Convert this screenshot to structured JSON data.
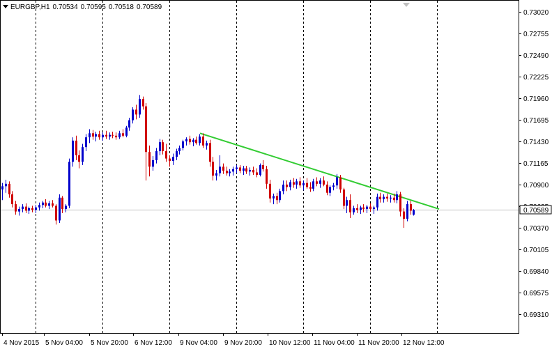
{
  "header": {
    "symbol": "EURGBP,H1",
    "open": "0.70534",
    "high": "0.70595",
    "low": "0.70518",
    "close": "0.70589"
  },
  "colors": {
    "bull": "#0000cc",
    "bear": "#d00000",
    "trendline": "#33cc33",
    "grid": "#000000",
    "price_line": "#c0c0c0",
    "current_price_box": "#ffffff"
  },
  "chart_data": {
    "type": "candlestick",
    "symbol": "EURGBP",
    "timeframe": "H1",
    "y_ticks": [
      "0.73020",
      "0.72755",
      "0.72490",
      "0.72225",
      "0.71960",
      "0.71695",
      "0.71430",
      "0.71165",
      "0.70900",
      "0.70635",
      "0.70370",
      "0.70105",
      "0.69840",
      "0.69575",
      "0.69310"
    ],
    "x_ticks": [
      "4 Nov 2015",
      "5 Nov 04:00",
      "5 Nov 20:00",
      "6 Nov 12:00",
      "9 Nov 04:00",
      "9 Nov 20:00",
      "10 Nov 12:00",
      "11 Nov 04:00",
      "11 Nov 20:00",
      "12 Nov 12:00"
    ],
    "current_price": "0.70589",
    "trendline": {
      "start": [
        "9 Nov 04:00",
        0.7153
      ],
      "end": [
        "12 Nov 12:00",
        0.706
      ]
    },
    "candles": [
      [
        0.7084,
        0.7092,
        0.7071,
        0.7088
      ],
      [
        0.7088,
        0.7096,
        0.708,
        0.7091
      ],
      [
        0.7091,
        0.7094,
        0.7074,
        0.7078
      ],
      [
        0.7078,
        0.7082,
        0.7062,
        0.7066
      ],
      [
        0.7066,
        0.707,
        0.7053,
        0.7057
      ],
      [
        0.7057,
        0.7063,
        0.7052,
        0.706
      ],
      [
        0.706,
        0.7066,
        0.7056,
        0.7063
      ],
      [
        0.7063,
        0.7067,
        0.7055,
        0.7058
      ],
      [
        0.7058,
        0.7063,
        0.7054,
        0.7061
      ],
      [
        0.7061,
        0.7064,
        0.7056,
        0.7059
      ],
      [
        0.7059,
        0.7065,
        0.7055,
        0.7062
      ],
      [
        0.7062,
        0.7068,
        0.7058,
        0.7065
      ],
      [
        0.7065,
        0.707,
        0.7061,
        0.7068
      ],
      [
        0.7068,
        0.7072,
        0.7062,
        0.7064
      ],
      [
        0.7064,
        0.707,
        0.706,
        0.7067
      ],
      [
        0.7067,
        0.7071,
        0.7062,
        0.7064
      ],
      [
        0.7064,
        0.7066,
        0.7041,
        0.7046
      ],
      [
        0.7046,
        0.7078,
        0.7043,
        0.7074
      ],
      [
        0.7074,
        0.7076,
        0.7055,
        0.706
      ],
      [
        0.706,
        0.7066,
        0.7056,
        0.7064
      ],
      [
        0.7064,
        0.7122,
        0.7061,
        0.7118
      ],
      [
        0.7118,
        0.7148,
        0.7112,
        0.7144
      ],
      [
        0.7144,
        0.715,
        0.712,
        0.7126
      ],
      [
        0.7126,
        0.7132,
        0.711,
        0.7118
      ],
      [
        0.7118,
        0.714,
        0.7114,
        0.7136
      ],
      [
        0.7136,
        0.7152,
        0.7131,
        0.7148
      ],
      [
        0.7148,
        0.7158,
        0.7141,
        0.7153
      ],
      [
        0.7153,
        0.7157,
        0.7145,
        0.7149
      ],
      [
        0.7149,
        0.7155,
        0.7143,
        0.7152
      ],
      [
        0.7152,
        0.7156,
        0.7145,
        0.7148
      ],
      [
        0.7148,
        0.7154,
        0.7144,
        0.7151
      ],
      [
        0.7151,
        0.7156,
        0.7146,
        0.7149
      ],
      [
        0.7149,
        0.7154,
        0.7145,
        0.7151
      ],
      [
        0.7151,
        0.7155,
        0.7147,
        0.715
      ],
      [
        0.715,
        0.7154,
        0.7145,
        0.7148
      ],
      [
        0.7148,
        0.7156,
        0.7146,
        0.7153
      ],
      [
        0.7153,
        0.7158,
        0.7148,
        0.715
      ],
      [
        0.715,
        0.7162,
        0.7148,
        0.716
      ],
      [
        0.716,
        0.7172,
        0.7156,
        0.7169
      ],
      [
        0.7169,
        0.7185,
        0.7165,
        0.7182
      ],
      [
        0.7182,
        0.7188,
        0.717,
        0.7176
      ],
      [
        0.7176,
        0.72,
        0.7172,
        0.7195
      ],
      [
        0.7195,
        0.7198,
        0.7182,
        0.7186
      ],
      [
        0.7186,
        0.719,
        0.7095,
        0.713
      ],
      [
        0.713,
        0.7138,
        0.71,
        0.7112
      ],
      [
        0.7112,
        0.7125,
        0.7107,
        0.712
      ],
      [
        0.712,
        0.7135,
        0.7116,
        0.7131
      ],
      [
        0.7131,
        0.7146,
        0.7126,
        0.7142
      ],
      [
        0.7142,
        0.7145,
        0.7127,
        0.7131
      ],
      [
        0.7131,
        0.714,
        0.7118,
        0.7122
      ],
      [
        0.7122,
        0.7126,
        0.7112,
        0.7119
      ],
      [
        0.7119,
        0.7128,
        0.7114,
        0.7124
      ],
      [
        0.7124,
        0.7134,
        0.712,
        0.7131
      ],
      [
        0.7131,
        0.7138,
        0.7127,
        0.7135
      ],
      [
        0.7135,
        0.7145,
        0.7132,
        0.7143
      ],
      [
        0.7143,
        0.7148,
        0.7138,
        0.7146
      ],
      [
        0.7146,
        0.715,
        0.7139,
        0.7142
      ],
      [
        0.7142,
        0.7147,
        0.7137,
        0.7145
      ],
      [
        0.7145,
        0.7149,
        0.7139,
        0.7141
      ],
      [
        0.7141,
        0.7152,
        0.7138,
        0.7149
      ],
      [
        0.7149,
        0.7153,
        0.7135,
        0.7138
      ],
      [
        0.7138,
        0.7144,
        0.7133,
        0.7141
      ],
      [
        0.7141,
        0.7145,
        0.7112,
        0.7118
      ],
      [
        0.7118,
        0.7124,
        0.7095,
        0.7101
      ],
      [
        0.7101,
        0.7108,
        0.7095,
        0.7104
      ],
      [
        0.7104,
        0.7126,
        0.71,
        0.7112
      ],
      [
        0.7112,
        0.7116,
        0.7103,
        0.7107
      ],
      [
        0.7107,
        0.7112,
        0.7101,
        0.7104
      ],
      [
        0.7104,
        0.7109,
        0.71,
        0.7106
      ],
      [
        0.7106,
        0.7112,
        0.7101,
        0.7109
      ],
      [
        0.7109,
        0.7114,
        0.7104,
        0.7111
      ],
      [
        0.7111,
        0.7114,
        0.7104,
        0.7107
      ],
      [
        0.7107,
        0.7113,
        0.7102,
        0.711
      ],
      [
        0.711,
        0.7113,
        0.7103,
        0.7106
      ],
      [
        0.7106,
        0.7111,
        0.7101,
        0.7108
      ],
      [
        0.7108,
        0.7112,
        0.7102,
        0.7105
      ],
      [
        0.7105,
        0.711,
        0.7099,
        0.7102
      ],
      [
        0.7102,
        0.7116,
        0.71,
        0.7114
      ],
      [
        0.7114,
        0.712,
        0.7106,
        0.7109
      ],
      [
        0.7109,
        0.7113,
        0.7085,
        0.7091
      ],
      [
        0.7091,
        0.7096,
        0.7068,
        0.7073
      ],
      [
        0.7073,
        0.7079,
        0.7066,
        0.7076
      ],
      [
        0.7076,
        0.708,
        0.7066,
        0.7071
      ],
      [
        0.7071,
        0.7085,
        0.7068,
        0.7082
      ],
      [
        0.7082,
        0.7095,
        0.7078,
        0.709
      ],
      [
        0.709,
        0.7095,
        0.7082,
        0.7087
      ],
      [
        0.7087,
        0.7096,
        0.7083,
        0.7093
      ],
      [
        0.7093,
        0.7098,
        0.7086,
        0.709
      ],
      [
        0.709,
        0.7097,
        0.7085,
        0.7094
      ],
      [
        0.7094,
        0.7099,
        0.7086,
        0.7089
      ],
      [
        0.7089,
        0.7095,
        0.7083,
        0.7092
      ],
      [
        0.7092,
        0.7098,
        0.7085,
        0.7087
      ],
      [
        0.7087,
        0.7093,
        0.7081,
        0.7085
      ],
      [
        0.7085,
        0.7097,
        0.7082,
        0.7094
      ],
      [
        0.7094,
        0.7099,
        0.7088,
        0.7091
      ],
      [
        0.7091,
        0.7098,
        0.7086,
        0.7095
      ],
      [
        0.7095,
        0.71,
        0.7088,
        0.709
      ],
      [
        0.709,
        0.7094,
        0.7077,
        0.708
      ],
      [
        0.708,
        0.7089,
        0.7076,
        0.7087
      ],
      [
        0.7087,
        0.7092,
        0.7083,
        0.7089
      ],
      [
        0.7089,
        0.7103,
        0.7085,
        0.7099
      ],
      [
        0.7099,
        0.7102,
        0.708,
        0.7084
      ],
      [
        0.7084,
        0.7086,
        0.706,
        0.7064
      ],
      [
        0.7064,
        0.7075,
        0.7055,
        0.7071
      ],
      [
        0.7071,
        0.7078,
        0.7049,
        0.7056
      ],
      [
        0.7056,
        0.7064,
        0.7053,
        0.7061
      ],
      [
        0.7061,
        0.7066,
        0.7055,
        0.7059
      ],
      [
        0.7059,
        0.7064,
        0.7054,
        0.7062
      ],
      [
        0.7062,
        0.7066,
        0.7056,
        0.706
      ],
      [
        0.706,
        0.7065,
        0.7055,
        0.7063
      ],
      [
        0.7063,
        0.7067,
        0.7057,
        0.706
      ],
      [
        0.706,
        0.7064,
        0.7054,
        0.7062
      ],
      [
        0.7062,
        0.7079,
        0.7058,
        0.7075
      ],
      [
        0.7075,
        0.708,
        0.7068,
        0.7072
      ],
      [
        0.7072,
        0.7078,
        0.7068,
        0.7075
      ],
      [
        0.7075,
        0.7079,
        0.7069,
        0.7073
      ],
      [
        0.7073,
        0.7077,
        0.7068,
        0.7074
      ],
      [
        0.7074,
        0.7079,
        0.7068,
        0.7071
      ],
      [
        0.7071,
        0.7082,
        0.7067,
        0.7078
      ],
      [
        0.7078,
        0.7081,
        0.7051,
        0.7057
      ],
      [
        0.7057,
        0.7061,
        0.7037,
        0.7048
      ],
      [
        0.7048,
        0.707,
        0.7045,
        0.7066
      ],
      [
        0.7066,
        0.707,
        0.7053,
        0.7058
      ],
      [
        0.7053,
        0.706,
        0.7052,
        0.7059
      ]
    ]
  }
}
